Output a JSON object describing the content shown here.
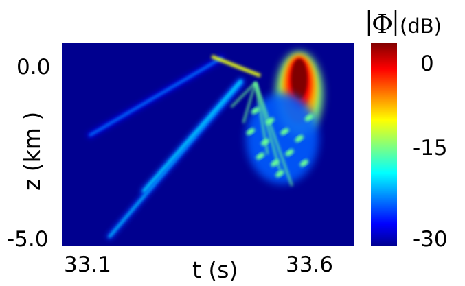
{
  "chart_data": {
    "type": "heatmap",
    "title": "",
    "xlabel": "t (s)",
    "ylabel": "z (km )",
    "x_ticks": [
      "33.1",
      "33.6"
    ],
    "y_ticks": [
      "0.0",
      "-5.0"
    ],
    "xlim": [
      33.1,
      33.6
    ],
    "ylim": [
      -5.0,
      0.0
    ],
    "colorbar": {
      "label_symbol": "Φ",
      "label_unit": "(dB)",
      "ticks": [
        "0",
        "-15",
        "-30"
      ],
      "range": [
        -30,
        0
      ],
      "colormap": "jet"
    },
    "features": [
      {
        "name": "surface-reflection-wedge",
        "kind": "ray",
        "from": [
          33.4,
          0.2
        ],
        "to": [
          33.13,
          -2.0
        ],
        "level_db": -23
      },
      {
        "name": "lower-oblique-arrival",
        "kind": "ray",
        "from": [
          33.44,
          -0.5
        ],
        "to": [
          33.17,
          -4.9
        ],
        "level_db": -21
      },
      {
        "name": "middle-oblique-arrival",
        "kind": "ray",
        "from": [
          33.44,
          -0.45
        ],
        "to": [
          33.24,
          -3.6
        ],
        "level_db": -20
      },
      {
        "name": "near-surface-source-peak",
        "kind": "blob",
        "t": 33.56,
        "z": -0.4,
        "level_db": 0
      },
      {
        "name": "scattered-coda",
        "kind": "cloud",
        "t": [
          33.45,
          33.6
        ],
        "z": [
          -0.8,
          -3.4
        ],
        "level_db": -18
      }
    ]
  },
  "colors": {
    "background": "#00008f",
    "jet_stops": [
      "#00008f",
      "#0000ff",
      "#00ffff",
      "#ffff00",
      "#ff0000",
      "#800000"
    ]
  }
}
